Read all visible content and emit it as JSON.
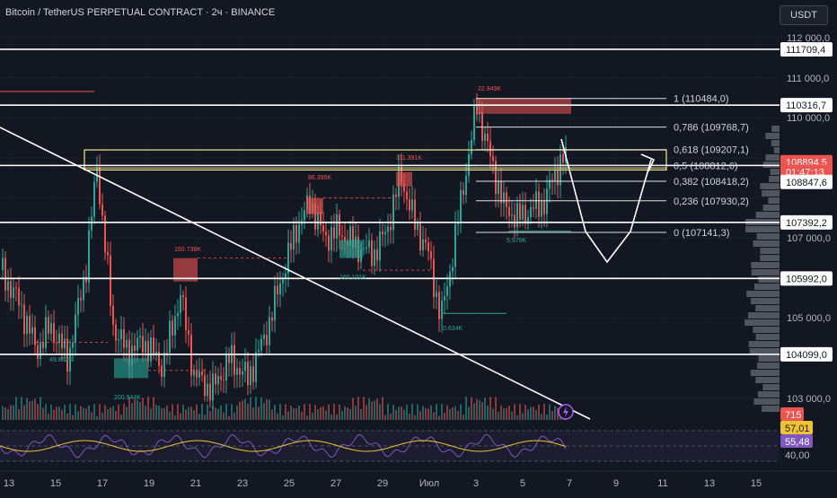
{
  "header": {
    "title": "Bitcoin / TetherUS PERPETUAL CONTRACT · 2ч · BINANCE",
    "currency_button": "USDT"
  },
  "price_axis": {
    "ticks": [
      "112 000,0",
      "111 000,0",
      "110 000,0",
      "107 000,0",
      "106 000,0",
      "105 000,0",
      "103 000,0"
    ]
  },
  "time_axis": {
    "labels": [
      "13",
      "15",
      "17",
      "19",
      "21",
      "23",
      "25",
      "27",
      "29",
      "Июл",
      "3",
      "5",
      "7",
      "9",
      "11",
      "13",
      "15"
    ]
  },
  "price_badges": [
    {
      "text": "111709,4",
      "price": 111709.4,
      "style": "white"
    },
    {
      "text": "110316,7",
      "price": 110316.7,
      "style": "white"
    },
    {
      "text": "108894,5",
      "price": 108894.5,
      "style": "red"
    },
    {
      "text": "01:47:13",
      "price": 108650,
      "style": "red-sub"
    },
    {
      "text": "108847,6",
      "price": 108400,
      "style": "white"
    },
    {
      "text": "107392,2",
      "price": 107392.2,
      "style": "white"
    },
    {
      "text": "105992,0",
      "price": 105992,
      "style": "white"
    },
    {
      "text": "104099,0",
      "price": 104099,
      "style": "white"
    }
  ],
  "horizontal_levels": [
    111709.4,
    110316.7,
    108812.6,
    107392.2,
    105992.0,
    104099.0
  ],
  "fib_levels": [
    {
      "label": "1 (110484,0)",
      "price": 110484.0
    },
    {
      "label": "0,786 (109768,7)",
      "price": 109768.7
    },
    {
      "label": "0,618 (109207,1)",
      "price": 109207.1
    },
    {
      "label": "0,5 (108812,6)",
      "price": 108812.6
    },
    {
      "label": "0,382 (108418,2)",
      "price": 108418.2
    },
    {
      "label": "0,236 (107930,2)",
      "price": 107930.2
    },
    {
      "label": "0 (107141,3)",
      "price": 107141.3
    }
  ],
  "annotations": [
    "22.949K",
    "111.391K",
    "86.395K",
    "160.738K",
    "165.101K",
    "49.852K",
    "200.944K",
    "5.979K",
    "0.634K"
  ],
  "rsi": {
    "badges": [
      "57,01",
      "55,48",
      "40,00"
    ],
    "volume_badge": "715"
  },
  "colors": {
    "background": "#131722",
    "up": "#26a69a",
    "down": "#ef5350",
    "rsi_line": "#7e57c2",
    "rsi_ma": "#f0c430",
    "yellow_zone": "#f3e98b"
  },
  "icons": {
    "alert": "lightning-icon"
  }
}
